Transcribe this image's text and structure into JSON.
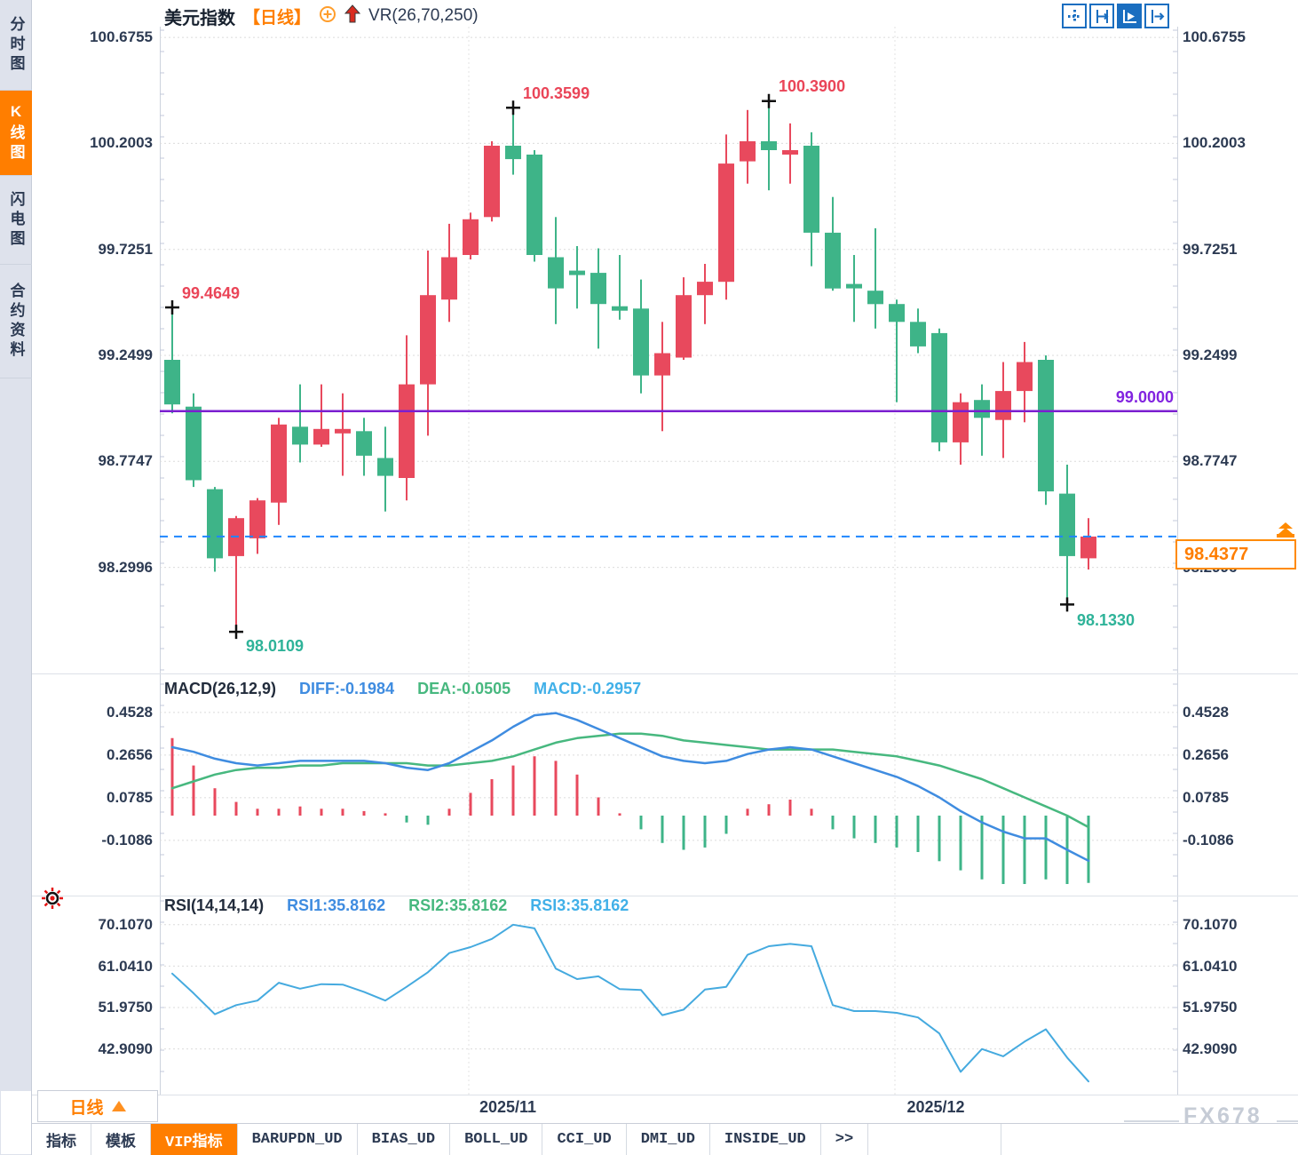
{
  "sidebar": {
    "items": [
      {
        "label": "分时图",
        "active": false
      },
      {
        "label": "K线图",
        "active": true
      },
      {
        "label": "闪电图",
        "active": false
      },
      {
        "label": "合约资料",
        "active": false
      }
    ]
  },
  "header": {
    "symbol": "美元指数",
    "period_tag": "【日线】",
    "indicator": "VR(26,70,250)",
    "icons": [
      "add-circle",
      "up-arrow",
      "pan-crosshair",
      "fit-axes",
      "auto-follow",
      "jump-to-latest"
    ]
  },
  "main_chart": {
    "y_axis": [
      "100.6755",
      "100.2003",
      "99.7251",
      "99.2499",
      "98.7747",
      "98.2996"
    ],
    "annotations": {
      "first_high": "99.4649",
      "peak1": "100.3599",
      "peak2": "100.3900",
      "first_low": "98.0109",
      "last_low": "98.1330",
      "hline": "99.0000",
      "last_price": "98.4377"
    }
  },
  "macd": {
    "title": "MACD(26,12,9)",
    "diff_label": "DIFF:-0.1984",
    "dea_label": "DEA:-0.0505",
    "macd_label": "MACD:-0.2957",
    "y_axis": [
      "0.4528",
      "0.2656",
      "0.0785",
      "-0.1086"
    ]
  },
  "rsi": {
    "title": "RSI(14,14,14)",
    "rsi1_label": "RSI1:35.8162",
    "rsi2_label": "RSI2:35.8162",
    "rsi3_label": "RSI3:35.8162",
    "y_axis": [
      "70.1070",
      "61.0410",
      "51.9750",
      "42.9090"
    ]
  },
  "x_axis": {
    "labels": [
      "2025/11",
      "2025/12"
    ]
  },
  "bottom": {
    "period_button": "日线",
    "tabs": [
      {
        "label": "指标",
        "active": false
      },
      {
        "label": "模板",
        "active": false
      },
      {
        "label": "VIP指标",
        "active": true
      },
      {
        "label": "BARUPDN_UD",
        "active": false
      },
      {
        "label": "BIAS_UD",
        "active": false
      },
      {
        "label": "BOLL_UD",
        "active": false
      },
      {
        "label": "CCI_UD",
        "active": false
      },
      {
        "label": "DMI_UD",
        "active": false
      },
      {
        "label": "INSIDE_UD",
        "active": false
      },
      {
        "label": ">>",
        "active": false
      }
    ],
    "watermark": "FX678"
  },
  "colors": {
    "up": "#e8495d",
    "down": "#3eb488",
    "accent": "#ff7e00",
    "purple_line": "#7b1fd0",
    "blue_dashed": "#1e86ff",
    "diff": "#3f8ce0",
    "dea": "#47b87f",
    "macd_value": "#41b0e8",
    "rsi_line": "#45aadf",
    "toolbar_blue": "#1a6ec0"
  },
  "chart_data": {
    "type": "candlestick+indicators",
    "symbol": "美元指数",
    "period": "日线",
    "overlay_indicator": "VR(26,70,250)",
    "price_axis_ticks": [
      100.6755,
      100.2003,
      99.7251,
      99.2499,
      98.7747,
      98.2996
    ],
    "hline": 99.0,
    "last_price": 98.4377,
    "x_gridline_labels": [
      "2025/11",
      "2025/12"
    ],
    "candles": [
      [
        99.23,
        99.4649,
        98.99,
        99.03
      ],
      [
        99.02,
        99.08,
        98.66,
        98.69
      ],
      [
        98.65,
        98.66,
        98.28,
        98.34
      ],
      [
        98.35,
        98.53,
        98.0109,
        98.52
      ],
      [
        98.43,
        98.61,
        98.36,
        98.6
      ],
      [
        98.59,
        98.97,
        98.49,
        98.94
      ],
      [
        98.93,
        99.12,
        98.77,
        98.85
      ],
      [
        98.85,
        99.12,
        98.84,
        98.92
      ],
      [
        98.9,
        99.08,
        98.71,
        98.92
      ],
      [
        98.91,
        98.97,
        98.71,
        98.8
      ],
      [
        98.79,
        98.93,
        98.55,
        98.71
      ],
      [
        98.7,
        99.34,
        98.6,
        99.12
      ],
      [
        99.12,
        99.72,
        98.89,
        99.52
      ],
      [
        99.5,
        99.84,
        99.4,
        99.69
      ],
      [
        99.7,
        99.89,
        99.68,
        99.86
      ],
      [
        99.87,
        100.21,
        99.85,
        100.19
      ],
      [
        100.19,
        100.3599,
        100.06,
        100.13
      ],
      [
        100.15,
        100.17,
        99.67,
        99.7
      ],
      [
        99.69,
        99.87,
        99.39,
        99.55
      ],
      [
        99.63,
        99.74,
        99.46,
        99.61
      ],
      [
        99.62,
        99.73,
        99.28,
        99.48
      ],
      [
        99.47,
        99.7,
        99.41,
        99.45
      ],
      [
        99.46,
        99.59,
        99.08,
        99.16
      ],
      [
        99.16,
        99.4,
        98.91,
        99.26
      ],
      [
        99.24,
        99.6,
        99.23,
        99.52
      ],
      [
        99.52,
        99.66,
        99.39,
        99.58
      ],
      [
        99.58,
        100.24,
        99.5,
        100.11
      ],
      [
        100.12,
        100.35,
        100.02,
        100.21
      ],
      [
        100.21,
        100.39,
        99.99,
        100.17
      ],
      [
        100.15,
        100.29,
        100.02,
        100.17
      ],
      [
        100.19,
        100.25,
        99.65,
        99.8
      ],
      [
        99.8,
        99.96,
        99.54,
        99.55
      ],
      [
        99.57,
        99.7,
        99.4,
        99.55
      ],
      [
        99.54,
        99.82,
        99.37,
        99.48
      ],
      [
        99.48,
        99.5,
        99.04,
        99.4
      ],
      [
        99.4,
        99.46,
        99.26,
        99.29
      ],
      [
        99.35,
        99.37,
        98.82,
        98.86
      ],
      [
        98.86,
        99.08,
        98.76,
        99.04
      ],
      [
        99.05,
        99.12,
        98.8,
        98.97
      ],
      [
        98.96,
        99.22,
        98.79,
        99.09
      ],
      [
        99.09,
        99.31,
        98.95,
        99.22
      ],
      [
        99.23,
        99.25,
        98.58,
        98.64
      ],
      [
        98.63,
        98.76,
        98.133,
        98.35
      ],
      [
        98.34,
        98.52,
        98.29,
        98.4377
      ]
    ],
    "markers": [
      {
        "i": 0,
        "price": 99.4649
      },
      {
        "i": 3,
        "price": 98.0109
      },
      {
        "i": 16,
        "price": 100.3599
      },
      {
        "i": 28,
        "price": 100.39
      },
      {
        "i": 42,
        "price": 98.133
      }
    ],
    "macd": {
      "params": [
        26,
        12,
        9
      ],
      "axis": [
        0.4528,
        0.2656,
        0.0785,
        -0.1086
      ],
      "current": {
        "diff": -0.1984,
        "dea": -0.0505,
        "macd": -0.2957
      },
      "diff": [
        0.3,
        0.28,
        0.25,
        0.23,
        0.22,
        0.23,
        0.24,
        0.24,
        0.24,
        0.24,
        0.23,
        0.21,
        0.2,
        0.23,
        0.28,
        0.33,
        0.39,
        0.44,
        0.45,
        0.42,
        0.38,
        0.34,
        0.3,
        0.26,
        0.24,
        0.23,
        0.24,
        0.27,
        0.29,
        0.3,
        0.29,
        0.26,
        0.23,
        0.2,
        0.17,
        0.13,
        0.08,
        0.02,
        -0.03,
        -0.07,
        -0.1,
        -0.1,
        -0.15,
        -0.198
      ],
      "dea": [
        0.12,
        0.15,
        0.18,
        0.2,
        0.21,
        0.21,
        0.22,
        0.22,
        0.23,
        0.23,
        0.23,
        0.23,
        0.22,
        0.22,
        0.23,
        0.24,
        0.26,
        0.29,
        0.32,
        0.34,
        0.35,
        0.36,
        0.36,
        0.35,
        0.33,
        0.32,
        0.31,
        0.3,
        0.29,
        0.29,
        0.29,
        0.29,
        0.28,
        0.27,
        0.26,
        0.24,
        0.22,
        0.19,
        0.16,
        0.12,
        0.08,
        0.04,
        0.0,
        -0.0505
      ],
      "hist": [
        0.34,
        0.22,
        0.12,
        0.06,
        0.03,
        0.03,
        0.04,
        0.03,
        0.03,
        0.02,
        0.01,
        -0.03,
        -0.04,
        0.03,
        0.1,
        0.16,
        0.22,
        0.26,
        0.24,
        0.18,
        0.08,
        0.01,
        -0.06,
        -0.12,
        -0.15,
        -0.14,
        -0.08,
        0.03,
        0.05,
        0.07,
        0.03,
        -0.06,
        -0.1,
        -0.12,
        -0.14,
        -0.16,
        -0.2,
        -0.24,
        -0.28,
        -0.3,
        -0.3,
        -0.28,
        -0.3,
        -0.2957
      ]
    },
    "rsi": {
      "params": [
        14,
        14,
        14
      ],
      "axis": [
        70.107,
        61.041,
        51.975,
        42.909
      ],
      "current": {
        "rsi1": 35.8162,
        "rsi2": 35.8162,
        "rsi3": 35.8162
      },
      "values": [
        59.4,
        55.1,
        50.5,
        52.5,
        53.5,
        57.4,
        56.1,
        57.1,
        57.0,
        55.4,
        53.5,
        56.5,
        59.7,
        63.9,
        65.2,
        67.0,
        70.1,
        69.3,
        60.5,
        58.2,
        58.8,
        56.0,
        55.8,
        50.3,
        51.5,
        55.9,
        56.5,
        63.5,
        65.4,
        65.9,
        65.4,
        52.5,
        51.2,
        51.2,
        50.8,
        49.8,
        46.3,
        37.9,
        42.9,
        41.3,
        44.5,
        47.2,
        41.0,
        35.8
      ]
    }
  }
}
